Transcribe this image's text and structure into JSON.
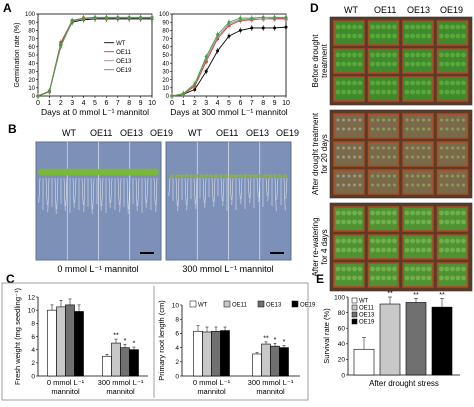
{
  "panels": {
    "A": "A",
    "B": "B",
    "C": "C",
    "D": "D",
    "E": "E"
  },
  "chart_data": [
    {
      "id": "A-left",
      "type": "line",
      "ylabel": "Germination rate (%)",
      "xlabel": "Days at 0 mmol L⁻¹ mannitol",
      "x": [
        0,
        1,
        2,
        3,
        4,
        5,
        6,
        7,
        8,
        9,
        10
      ],
      "xlim": [
        0,
        10
      ],
      "ylim": [
        0,
        100
      ],
      "yticks": [
        0,
        10,
        20,
        30,
        40,
        50,
        60,
        70,
        80,
        90,
        100
      ],
      "series": [
        {
          "name": "WT",
          "color": "#000000",
          "values": [
            0,
            5,
            62,
            90,
            93,
            94,
            94,
            94,
            94,
            94,
            94
          ]
        },
        {
          "name": "OE11",
          "color": "#e03030",
          "values": [
            0,
            6,
            65,
            92,
            95,
            95,
            95,
            95,
            95,
            95,
            95
          ]
        },
        {
          "name": "OE13",
          "color": "#909090",
          "values": [
            0,
            5,
            60,
            91,
            94,
            95,
            95,
            95,
            95,
            95,
            95
          ]
        },
        {
          "name": "OE19",
          "color": "#40a040",
          "values": [
            0,
            6,
            63,
            92,
            95,
            96,
            96,
            96,
            96,
            96,
            96
          ]
        }
      ],
      "legend": "right"
    },
    {
      "id": "A-right",
      "type": "line",
      "xlabel": "Days at 300 mmol L⁻¹ mannitol",
      "x": [
        0,
        1,
        2,
        3,
        4,
        5,
        6,
        7,
        8,
        9,
        10
      ],
      "xlim": [
        0,
        10
      ],
      "ylim": [
        0,
        100
      ],
      "yticks": [
        0,
        10,
        20,
        30,
        40,
        50,
        60,
        70,
        80,
        90,
        100
      ],
      "series": [
        {
          "name": "WT",
          "color": "#000000",
          "values": [
            0,
            2,
            8,
            30,
            55,
            73,
            80,
            83,
            83,
            83,
            84
          ]
        },
        {
          "name": "OE11",
          "color": "#e03030",
          "values": [
            0,
            2,
            12,
            42,
            70,
            86,
            92,
            93,
            94,
            94,
            94
          ]
        },
        {
          "name": "OE13",
          "color": "#909090",
          "values": [
            0,
            2,
            14,
            45,
            72,
            88,
            93,
            94,
            94,
            95,
            95
          ]
        },
        {
          "name": "OE19",
          "color": "#40a040",
          "values": [
            0,
            3,
            15,
            48,
            75,
            90,
            95,
            95,
            96,
            96,
            96
          ]
        }
      ]
    },
    {
      "id": "C-left",
      "type": "bar",
      "ylabel": "Fresh weight (mg seedling⁻¹)",
      "categories": [
        "0 mmol L⁻¹ mannitol",
        "300 mmol L⁻¹ mannitol"
      ],
      "ylim": [
        0,
        12
      ],
      "yticks": [
        0,
        2,
        4,
        6,
        8,
        10,
        12
      ],
      "series": [
        {
          "name": "WT",
          "color": "#ffffff",
          "values": [
            10.0,
            3.0
          ]
        },
        {
          "name": "OE11",
          "color": "#c8c8c8",
          "values": [
            10.5,
            5.0
          ]
        },
        {
          "name": "OE13",
          "color": "#707070",
          "values": [
            10.8,
            4.3
          ]
        },
        {
          "name": "OE19",
          "color": "#000000",
          "values": [
            9.8,
            4.0
          ]
        }
      ],
      "errors": [
        [
          0.8,
          1.0,
          0.9,
          1.0
        ],
        [
          0.3,
          0.6,
          0.5,
          0.4
        ]
      ],
      "annotations": [
        [
          "",
          "",
          "",
          ""
        ],
        [
          "",
          "**",
          "*",
          "*"
        ]
      ]
    },
    {
      "id": "C-right",
      "type": "bar",
      "ylabel": "Primary root length (cm)",
      "categories": [
        "0 mmol L⁻¹ mannitol",
        "300 mmol L⁻¹ mannitol"
      ],
      "ylim": [
        0,
        10
      ],
      "yticks": [
        0,
        2,
        4,
        6,
        8,
        10
      ],
      "series": [
        {
          "name": "WT",
          "color": "#ffffff",
          "values": [
            6.3,
            3.1
          ]
        },
        {
          "name": "OE11",
          "color": "#c8c8c8",
          "values": [
            6.2,
            4.5
          ]
        },
        {
          "name": "OE13",
          "color": "#707070",
          "values": [
            6.3,
            4.2
          ]
        },
        {
          "name": "OE19",
          "color": "#000000",
          "values": [
            6.4,
            4.0
          ]
        }
      ],
      "errors": [
        [
          0.8,
          0.7,
          0.6,
          0.5
        ],
        [
          0.2,
          0.3,
          0.4,
          0.3
        ]
      ],
      "annotations": [
        [
          "",
          "",
          "",
          ""
        ],
        [
          "",
          "**",
          "*",
          "*"
        ]
      ],
      "legend": "top"
    },
    {
      "id": "E",
      "type": "bar",
      "ylabel": "Survival rate (%)",
      "xlabel": "After drought stress",
      "categories": [
        "WT",
        "OE11",
        "OE13",
        "OE19"
      ],
      "ylim": [
        0,
        100
      ],
      "yticks": [
        0,
        20,
        40,
        60,
        80,
        100
      ],
      "colors": [
        "#ffffff",
        "#c8c8c8",
        "#707070",
        "#000000"
      ],
      "values": [
        33,
        91,
        93,
        87
      ],
      "errors": [
        15,
        9,
        5,
        11
      ],
      "annotations": [
        "",
        "**",
        "**",
        "**"
      ],
      "legend": "top-left"
    }
  ],
  "panelB": {
    "genotypes": [
      "WT",
      "OE11",
      "OE13",
      "OE19"
    ],
    "left_label": "0 mmol L⁻¹ mannitol",
    "right_label": "300 mmol L⁻¹ mannitol"
  },
  "panelD": {
    "genotypes": [
      "WT",
      "OE11",
      "OE13",
      "OE19"
    ],
    "rows": [
      {
        "label": "Before drought treatment"
      },
      {
        "label": "After drought treatment for 20 days"
      },
      {
        "label": "After re-watering for 4 days"
      }
    ]
  }
}
